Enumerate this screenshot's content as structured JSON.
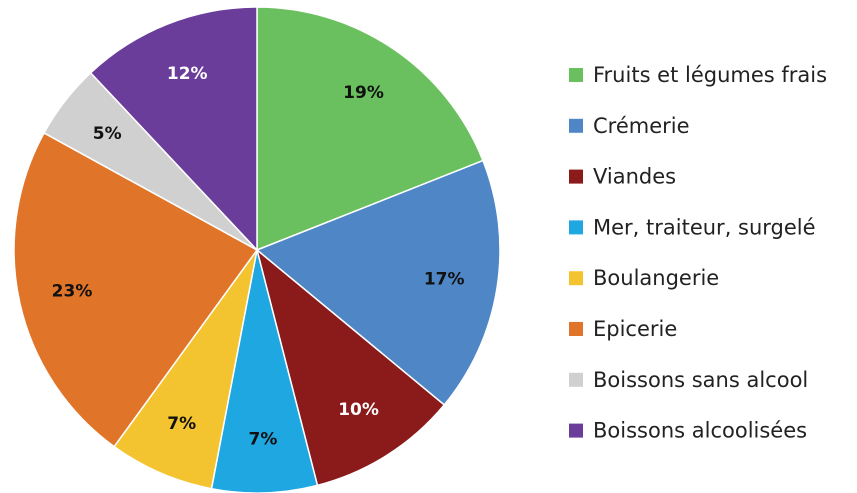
{
  "chart_data": {
    "type": "pie",
    "categories": [
      "Fruits et légumes frais",
      "Crémerie",
      "Viandes",
      "Mer, traiteur, surgelé",
      "Boulangerie",
      "Epicerie",
      "Boissons sans alcool",
      "Boissons alcoolisées"
    ],
    "values": [
      19,
      17,
      10,
      7,
      7,
      23,
      5,
      12
    ],
    "value_labels": [
      "19%",
      "17%",
      "10%",
      "7%",
      "7%",
      "23%",
      "5%",
      "12%"
    ],
    "colors": [
      "#6abf5e",
      "#4f86c6",
      "#8b1a1a",
      "#1ea7e1",
      "#f4c430",
      "#e07428",
      "#d0d0d0",
      "#6a3d9a"
    ],
    "legend": "right"
  }
}
